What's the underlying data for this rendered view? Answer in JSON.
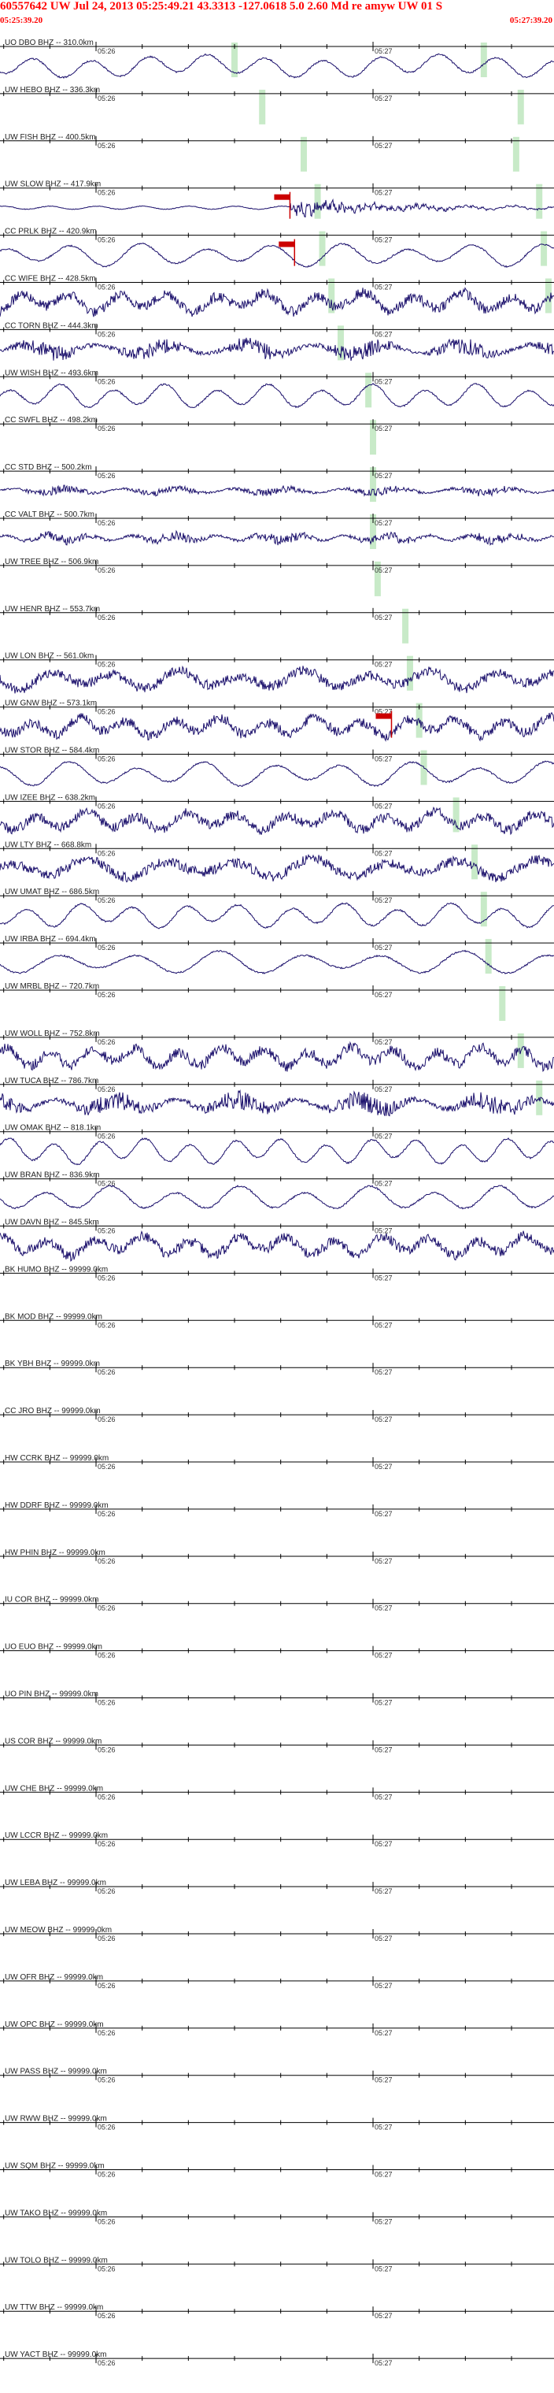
{
  "header": {
    "title": "60557642 UW Jul 24, 2013 05:25:49.21   43.3313 -127.0618  5.0 2.60 Md re amyw UW 01  S",
    "start_time": "05:25:39.20",
    "end_time": "05:27:39.20"
  },
  "colors": {
    "trace": "#1a0f6b",
    "header": "#ff0000",
    "phase_marker": "#c8eac8",
    "pick": "#cc0000",
    "axis": "#000000"
  },
  "chart_data": {
    "type": "line",
    "x_unit": "time (UTC)",
    "x_range": [
      "05:25:39.20",
      "05:27:39.20"
    ],
    "minute_labels": [
      "05:26",
      "05:27"
    ],
    "stations": [
      {
        "label": "UO DBO BHZ -- 310.0km",
        "has_data": true,
        "amplitude": 0.75,
        "char": "lowfreq",
        "seed": 1,
        "phase_marker_times": [
          "05:26:30",
          "05:27:24"
        ],
        "pick_time": null
      },
      {
        "label": "UW HEBO BHZ -- 336.3km",
        "has_data": false,
        "amplitude": 0,
        "char": "none",
        "seed": 2,
        "phase_marker_times": [
          "05:26:36",
          "05:27:32"
        ],
        "pick_time": null
      },
      {
        "label": "UW FISH BHZ -- 400.5km",
        "has_data": false,
        "amplitude": 0,
        "char": "none",
        "seed": 3,
        "phase_marker_times": [
          "05:26:45",
          "05:27:31"
        ],
        "pick_time": null
      },
      {
        "label": "UW SLOW BHZ -- 417.9km",
        "has_data": true,
        "amplitude": 0.6,
        "char": "event",
        "seed": 4,
        "phase_marker_times": [
          "05:26:48",
          "05:27:36"
        ],
        "pick_time": "05:26:42"
      },
      {
        "label": "CC PRLK BHZ -- 420.9km",
        "has_data": true,
        "amplitude": 0.75,
        "char": "lowfreq",
        "seed": 5,
        "phase_marker_times": [
          "05:26:49",
          "05:27:37"
        ],
        "pick_time": "05:26:43"
      },
      {
        "label": "CC WIFE BHZ -- 428.5km",
        "has_data": true,
        "amplitude": 0.9,
        "char": "mixed",
        "seed": 6,
        "phase_marker_times": [
          "05:26:51",
          "05:27:38"
        ],
        "pick_time": null
      },
      {
        "label": "CC TORN BHZ -- 444.3km",
        "has_data": true,
        "amplitude": 0.85,
        "char": "noisy",
        "seed": 7,
        "phase_marker_times": [
          "05:26:53"
        ],
        "pick_time": null
      },
      {
        "label": "UW WISH BHZ -- 493.6km",
        "has_data": true,
        "amplitude": 0.8,
        "char": "lowfreq",
        "seed": 8,
        "phase_marker_times": [
          "05:26:59"
        ],
        "pick_time": null
      },
      {
        "label": "CC SWFL BHZ -- 498.2km",
        "has_data": false,
        "amplitude": 0,
        "char": "none",
        "seed": 9,
        "phase_marker_times": [
          "05:27:00"
        ],
        "pick_time": null
      },
      {
        "label": "CC STD BHZ -- 500.2km",
        "has_data": true,
        "amplitude": 0.4,
        "char": "noisy",
        "seed": 10,
        "phase_marker_times": [
          "05:27:00"
        ],
        "pick_time": null
      },
      {
        "label": "CC VALT BHZ -- 500.7km",
        "has_data": true,
        "amplitude": 0.5,
        "char": "noisy",
        "seed": 11,
        "phase_marker_times": [
          "05:27:00"
        ],
        "pick_time": null
      },
      {
        "label": "UW TREE BHZ -- 506.9km",
        "has_data": false,
        "amplitude": 0,
        "char": "none",
        "seed": 12,
        "phase_marker_times": [
          "05:27:01"
        ],
        "pick_time": null
      },
      {
        "label": "UW HENR BHZ -- 553.7km",
        "has_data": false,
        "amplitude": 0,
        "char": "none",
        "seed": 13,
        "phase_marker_times": [
          "05:27:07"
        ],
        "pick_time": null
      },
      {
        "label": "UW LON BHZ -- 561.0km",
        "has_data": true,
        "amplitude": 0.85,
        "char": "mixed",
        "seed": 14,
        "phase_marker_times": [
          "05:27:08"
        ],
        "pick_time": null
      },
      {
        "label": "UW GNW BHZ -- 573.1km",
        "has_data": true,
        "amplitude": 0.85,
        "char": "mixed",
        "seed": 15,
        "phase_marker_times": [
          "05:27:10"
        ],
        "pick_time": "05:27:04"
      },
      {
        "label": "UW STOR BHZ -- 584.4km",
        "has_data": true,
        "amplitude": 0.8,
        "char": "lowfreq",
        "seed": 16,
        "phase_marker_times": [
          "05:27:11"
        ],
        "pick_time": null
      },
      {
        "label": "UW IZEE BHZ -- 638.2km",
        "has_data": true,
        "amplitude": 0.85,
        "char": "mixed",
        "seed": 17,
        "phase_marker_times": [
          "05:27:18"
        ],
        "pick_time": null
      },
      {
        "label": "UW LTY BHZ -- 668.8km",
        "has_data": true,
        "amplitude": 0.85,
        "char": "mixed",
        "seed": 18,
        "phase_marker_times": [
          "05:27:22"
        ],
        "pick_time": null
      },
      {
        "label": "UW UMAT BHZ -- 686.5km",
        "has_data": true,
        "amplitude": 0.8,
        "char": "lowfreq",
        "seed": 19,
        "phase_marker_times": [
          "05:27:24"
        ],
        "pick_time": null
      },
      {
        "label": "UW IRBA BHZ -- 694.4km",
        "has_data": true,
        "amplitude": 0.75,
        "char": "lowfreq",
        "seed": 20,
        "phase_marker_times": [
          "05:27:25"
        ],
        "pick_time": null
      },
      {
        "label": "UW MRBL BHZ -- 720.7km",
        "has_data": false,
        "amplitude": 0,
        "char": "none",
        "seed": 21,
        "phase_marker_times": [
          "05:27:28"
        ],
        "pick_time": null
      },
      {
        "label": "UW WOLL BHZ -- 752.8km",
        "has_data": true,
        "amplitude": 0.9,
        "char": "mixed",
        "seed": 22,
        "phase_marker_times": [
          "05:27:32"
        ],
        "pick_time": null
      },
      {
        "label": "UW TUCA BHZ -- 786.7km",
        "has_data": true,
        "amplitude": 0.95,
        "char": "noisy",
        "seed": 23,
        "phase_marker_times": [
          "05:27:36"
        ],
        "pick_time": null
      },
      {
        "label": "UW OMAK BHZ -- 818.1km",
        "has_data": true,
        "amplitude": 0.85,
        "char": "lowfreq",
        "seed": 24,
        "phase_marker_times": [],
        "pick_time": null
      },
      {
        "label": "UW BRAN BHZ -- 836.9km",
        "has_data": true,
        "amplitude": 0.8,
        "char": "lowfreq",
        "seed": 25,
        "phase_marker_times": [],
        "pick_time": null
      },
      {
        "label": "UW DAVN BHZ -- 845.5km",
        "has_data": true,
        "amplitude": 0.9,
        "char": "mixed",
        "seed": 26,
        "phase_marker_times": [],
        "pick_time": null
      },
      {
        "label": "BK HUMO BHZ -- 99999.0km",
        "has_data": false,
        "amplitude": 0,
        "char": "none",
        "seed": 27,
        "phase_marker_times": [],
        "pick_time": null
      },
      {
        "label": "BK MOD BHZ -- 99999.0km",
        "has_data": false,
        "amplitude": 0,
        "char": "none",
        "seed": 28,
        "phase_marker_times": [],
        "pick_time": null
      },
      {
        "label": "BK YBH BHZ -- 99999.0km",
        "has_data": false,
        "amplitude": 0,
        "char": "none",
        "seed": 29,
        "phase_marker_times": [],
        "pick_time": null
      },
      {
        "label": "CC JRO BHZ -- 99999.0km",
        "has_data": false,
        "amplitude": 0,
        "char": "none",
        "seed": 30,
        "phase_marker_times": [],
        "pick_time": null
      },
      {
        "label": "HW CCRK BHZ -- 99999.0km",
        "has_data": false,
        "amplitude": 0,
        "char": "none",
        "seed": 31,
        "phase_marker_times": [],
        "pick_time": null
      },
      {
        "label": "HW DDRF BHZ -- 99999.0km",
        "has_data": false,
        "amplitude": 0,
        "char": "none",
        "seed": 32,
        "phase_marker_times": [],
        "pick_time": null
      },
      {
        "label": "HW PHIN BHZ -- 99999.0km",
        "has_data": false,
        "amplitude": 0,
        "char": "none",
        "seed": 33,
        "phase_marker_times": [],
        "pick_time": null
      },
      {
        "label": "IU COR BHZ -- 99999.0km",
        "has_data": false,
        "amplitude": 0,
        "char": "none",
        "seed": 34,
        "phase_marker_times": [],
        "pick_time": null
      },
      {
        "label": "UO EUO BHZ -- 99999.0km",
        "has_data": false,
        "amplitude": 0,
        "char": "none",
        "seed": 35,
        "phase_marker_times": [],
        "pick_time": null
      },
      {
        "label": "UO PIN BHZ -- 99999.0km",
        "has_data": false,
        "amplitude": 0,
        "char": "none",
        "seed": 36,
        "phase_marker_times": [],
        "pick_time": null
      },
      {
        "label": "US COR BHZ -- 99999.0km",
        "has_data": false,
        "amplitude": 0,
        "char": "none",
        "seed": 37,
        "phase_marker_times": [],
        "pick_time": null
      },
      {
        "label": "UW CHE BHZ -- 99999.0km",
        "has_data": false,
        "amplitude": 0,
        "char": "none",
        "seed": 38,
        "phase_marker_times": [],
        "pick_time": null
      },
      {
        "label": "UW LCCR BHZ -- 99999.0km",
        "has_data": false,
        "amplitude": 0,
        "char": "none",
        "seed": 39,
        "phase_marker_times": [],
        "pick_time": null
      },
      {
        "label": "UW LEBA BHZ -- 99999.0km",
        "has_data": false,
        "amplitude": 0,
        "char": "none",
        "seed": 40,
        "phase_marker_times": [],
        "pick_time": null
      },
      {
        "label": "UW MEOW BHZ -- 99999.0km",
        "has_data": false,
        "amplitude": 0,
        "char": "none",
        "seed": 41,
        "phase_marker_times": [],
        "pick_time": null
      },
      {
        "label": "UW OFR BHZ -- 99999.0km",
        "has_data": false,
        "amplitude": 0,
        "char": "none",
        "seed": 42,
        "phase_marker_times": [],
        "pick_time": null
      },
      {
        "label": "UW OPC BHZ -- 99999.0km",
        "has_data": false,
        "amplitude": 0,
        "char": "none",
        "seed": 43,
        "phase_marker_times": [],
        "pick_time": null
      },
      {
        "label": "UW PASS BHZ -- 99999.0km",
        "has_data": false,
        "amplitude": 0,
        "char": "none",
        "seed": 44,
        "phase_marker_times": [],
        "pick_time": null
      },
      {
        "label": "UW RWW BHZ -- 99999.0km",
        "has_data": false,
        "amplitude": 0,
        "char": "none",
        "seed": 45,
        "phase_marker_times": [],
        "pick_time": null
      },
      {
        "label": "UW SQM BHZ -- 99999.0km",
        "has_data": false,
        "amplitude": 0,
        "char": "none",
        "seed": 46,
        "phase_marker_times": [],
        "pick_time": null
      },
      {
        "label": "UW TAKO BHZ -- 99999.0km",
        "has_data": false,
        "amplitude": 0,
        "char": "none",
        "seed": 47,
        "phase_marker_times": [],
        "pick_time": null
      },
      {
        "label": "UW TOLO BHZ -- 99999.0km",
        "has_data": false,
        "amplitude": 0,
        "char": "none",
        "seed": 48,
        "phase_marker_times": [],
        "pick_time": null
      },
      {
        "label": "UW TTW BHZ -- 99999.0km",
        "has_data": false,
        "amplitude": 0,
        "char": "none",
        "seed": 49,
        "phase_marker_times": [],
        "pick_time": null
      },
      {
        "label": "UW YACT BHZ -- 99999.0km",
        "has_data": false,
        "amplitude": 0,
        "char": "none",
        "seed": 50,
        "phase_marker_times": [],
        "pick_time": null
      }
    ]
  }
}
